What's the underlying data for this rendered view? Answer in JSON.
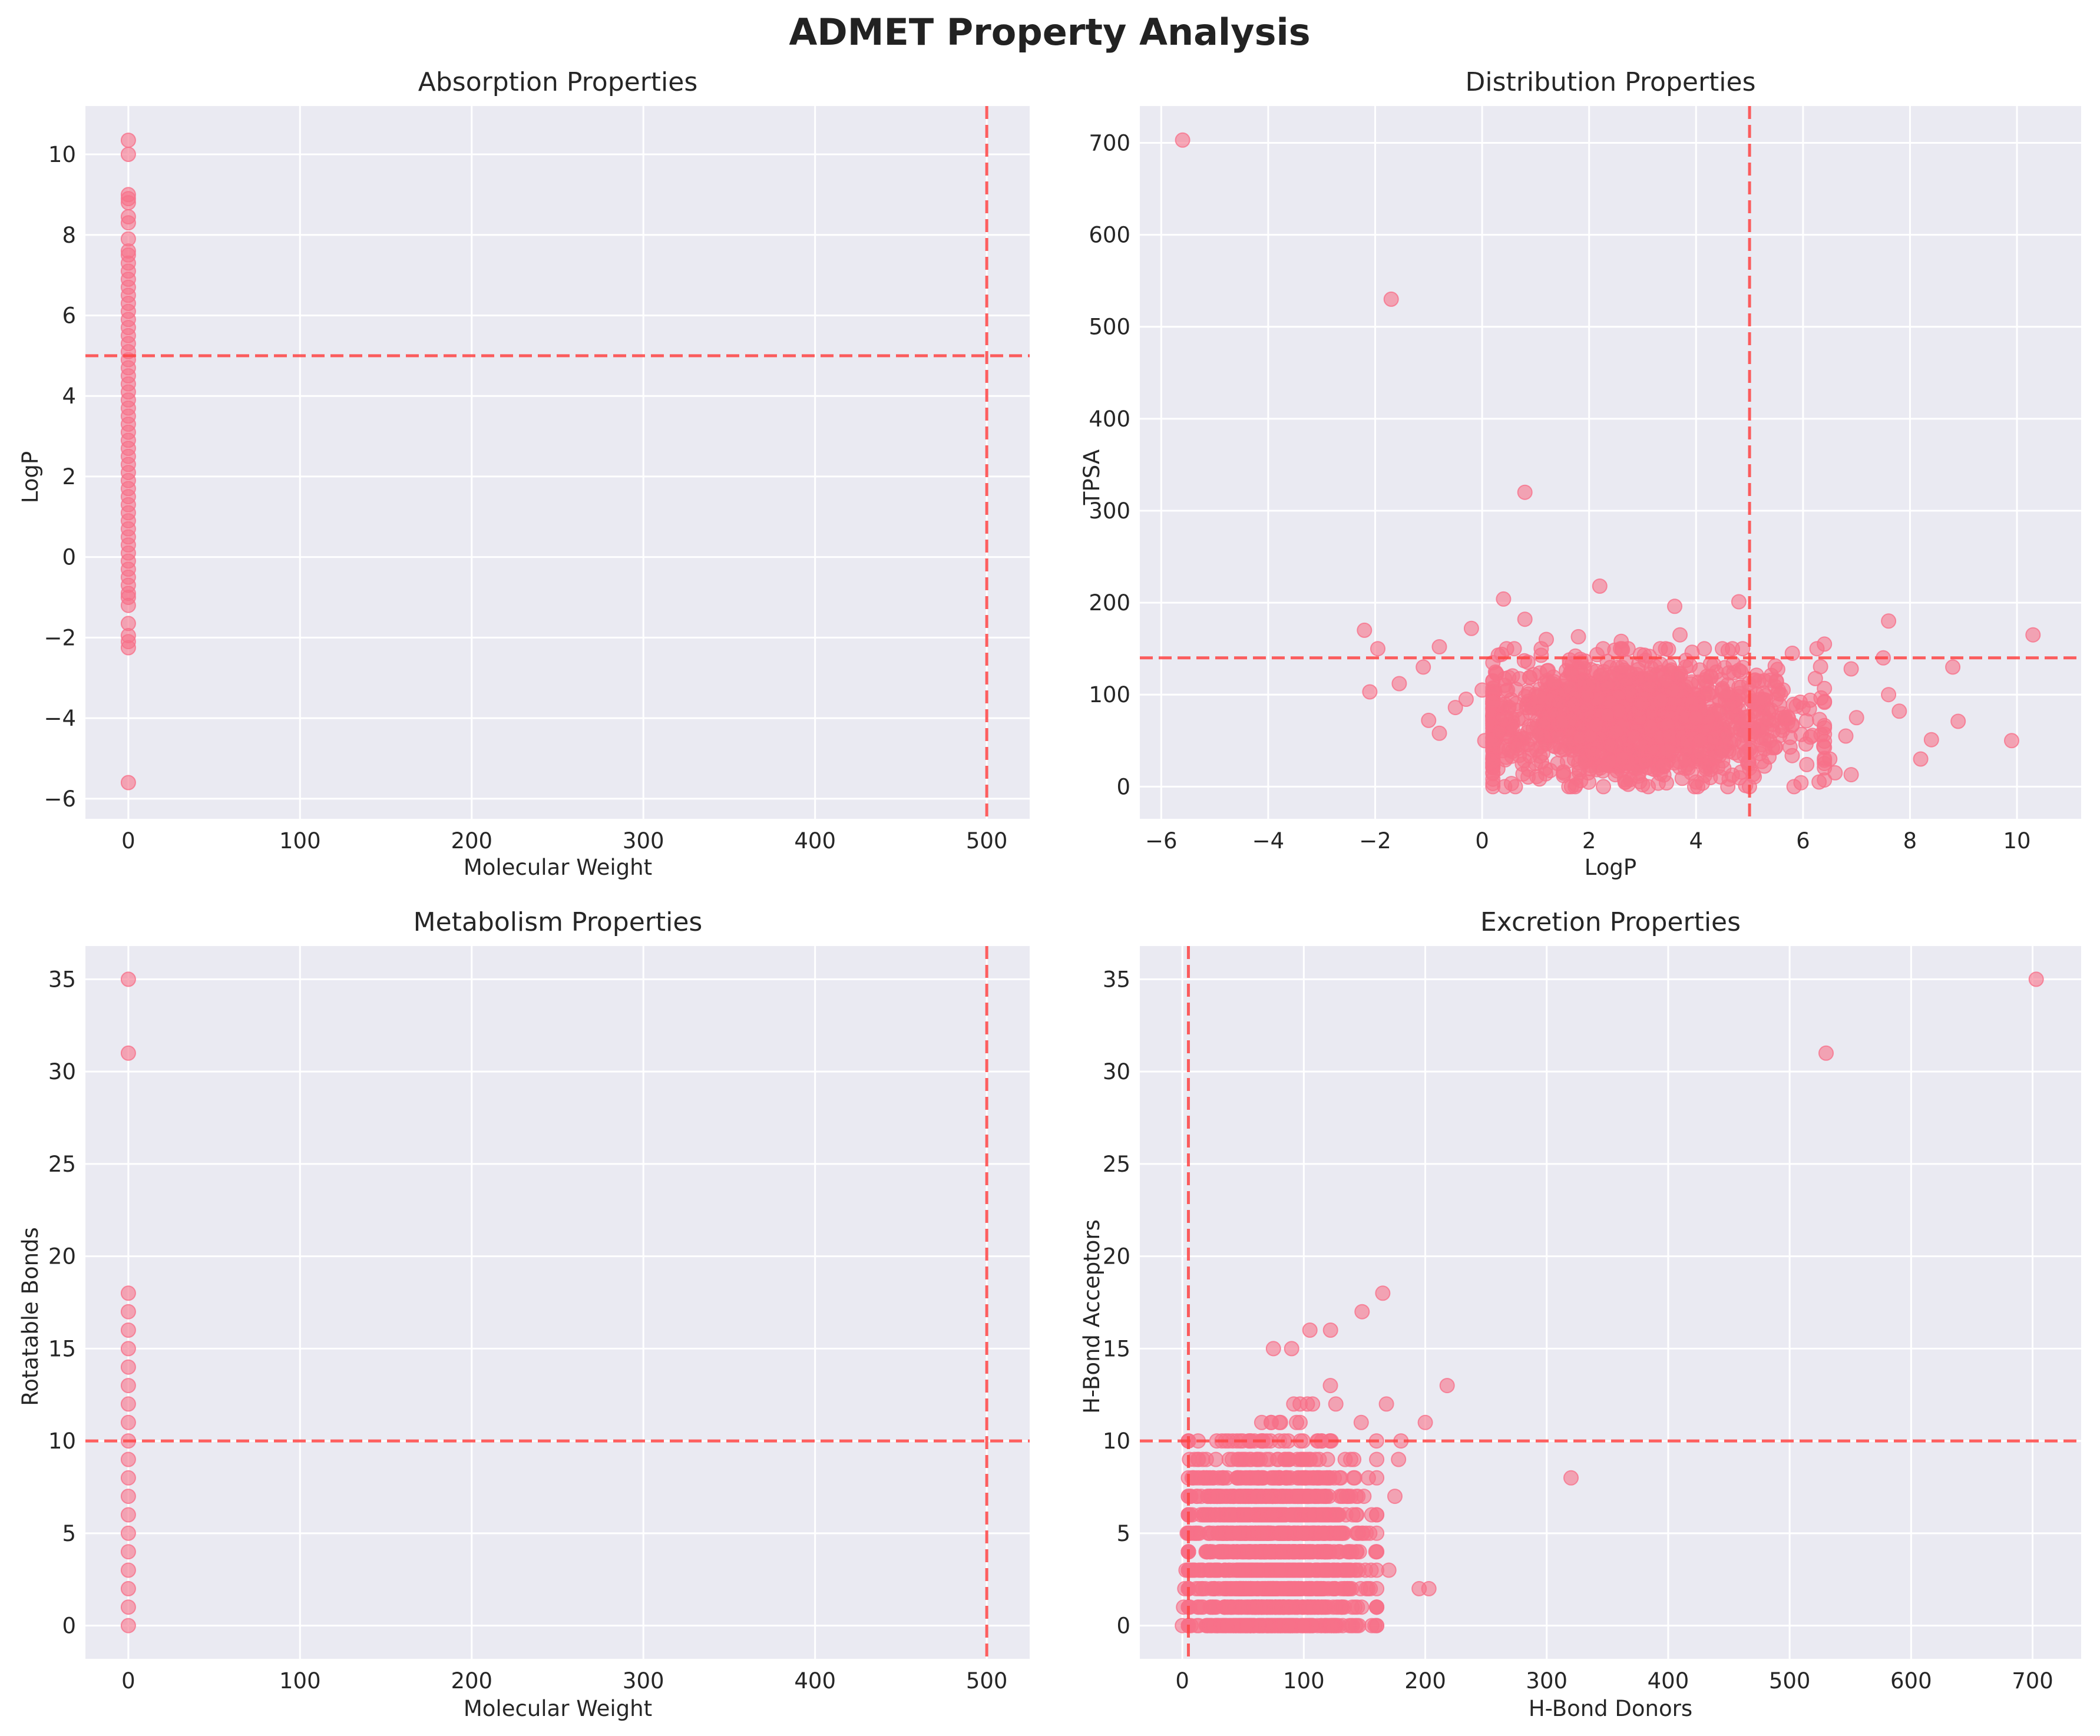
{
  "figure": {
    "title": "ADMET Property Analysis"
  },
  "colors": {
    "point": "#f77189",
    "reference_line": "#ff4444",
    "plot_background": "#eaeaf2",
    "grid": "#ffffff"
  },
  "chart_data": [
    {
      "type": "scatter",
      "title": "Absorption Properties",
      "xlabel": "Molecular Weight",
      "ylabel": "LogP",
      "xlim": [
        -25,
        525
      ],
      "ylim": [
        -6.5,
        11.2
      ],
      "xticks": [
        0,
        100,
        200,
        300,
        400,
        500
      ],
      "yticks": [
        -6,
        -4,
        -2,
        0,
        2,
        4,
        6,
        8,
        10
      ],
      "grid": true,
      "reference_lines": [
        {
          "orientation": "horizontal",
          "value": 5
        },
        {
          "orientation": "vertical",
          "value": 500
        }
      ],
      "points": [
        [
          0,
          10.35
        ],
        [
          0,
          10.0
        ],
        [
          0,
          9.0
        ],
        [
          0,
          8.9
        ],
        [
          0,
          8.8
        ],
        [
          0,
          8.45
        ],
        [
          0,
          8.3
        ],
        [
          0,
          7.9
        ],
        [
          0,
          7.6
        ],
        [
          0,
          7.5
        ],
        [
          0,
          7.3
        ],
        [
          0,
          7.1
        ],
        [
          0,
          6.9
        ],
        [
          0,
          6.7
        ],
        [
          0,
          6.5
        ],
        [
          0,
          6.3
        ],
        [
          0,
          6.1
        ],
        [
          0,
          5.9
        ],
        [
          0,
          5.7
        ],
        [
          0,
          5.5
        ],
        [
          0,
          5.3
        ],
        [
          0,
          5.1
        ],
        [
          0,
          4.9
        ],
        [
          0,
          4.7
        ],
        [
          0,
          4.5
        ],
        [
          0,
          4.3
        ],
        [
          0,
          4.1
        ],
        [
          0,
          3.9
        ],
        [
          0,
          3.7
        ],
        [
          0,
          3.5
        ],
        [
          0,
          3.3
        ],
        [
          0,
          3.1
        ],
        [
          0,
          2.9
        ],
        [
          0,
          2.7
        ],
        [
          0,
          2.5
        ],
        [
          0,
          2.3
        ],
        [
          0,
          2.1
        ],
        [
          0,
          1.9
        ],
        [
          0,
          1.7
        ],
        [
          0,
          1.5
        ],
        [
          0,
          1.3
        ],
        [
          0,
          1.1
        ],
        [
          0,
          0.9
        ],
        [
          0,
          0.7
        ],
        [
          0,
          0.5
        ],
        [
          0,
          0.3
        ],
        [
          0,
          0.1
        ],
        [
          0,
          -0.1
        ],
        [
          0,
          -0.3
        ],
        [
          0,
          -0.5
        ],
        [
          0,
          -0.7
        ],
        [
          0,
          -0.9
        ],
        [
          0,
          -1.0
        ],
        [
          0,
          -1.2
        ],
        [
          0,
          -1.65
        ],
        [
          0,
          -1.95
        ],
        [
          0,
          -2.1
        ],
        [
          0,
          -2.25
        ],
        [
          0,
          -5.6
        ]
      ]
    },
    {
      "type": "scatter",
      "title": "Distribution Properties",
      "xlabel": "LogP",
      "ylabel": "TPSA",
      "xlim": [
        -6.4,
        11.2
      ],
      "ylim": [
        -35,
        740
      ],
      "xticks": [
        -6,
        -4,
        -2,
        0,
        2,
        4,
        6,
        8,
        10
      ],
      "yticks": [
        0,
        100,
        200,
        300,
        400,
        500,
        600,
        700
      ],
      "grid": true,
      "reference_lines": [
        {
          "orientation": "horizontal",
          "value": 140
        },
        {
          "orientation": "vertical",
          "value": 5
        }
      ],
      "points": [
        [
          -5.6,
          703
        ],
        [
          -1.7,
          530
        ],
        [
          0.8,
          320
        ],
        [
          2.2,
          218
        ],
        [
          0.4,
          204
        ],
        [
          3.6,
          196
        ],
        [
          4.8,
          201
        ],
        [
          -2.2,
          170
        ],
        [
          -0.2,
          172
        ],
        [
          7.6,
          180
        ],
        [
          10.3,
          165
        ],
        [
          0.8,
          182
        ],
        [
          -1.95,
          150
        ],
        [
          -0.8,
          152
        ],
        [
          -1.1,
          130
        ],
        [
          -2.1,
          103
        ],
        [
          -1.55,
          112
        ],
        [
          -1.0,
          72
        ],
        [
          -0.8,
          58
        ],
        [
          -0.5,
          86
        ],
        [
          -0.3,
          95
        ],
        [
          0.0,
          105
        ],
        [
          0.05,
          50
        ],
        [
          0.2,
          48
        ],
        [
          8.8,
          130
        ],
        [
          8.9,
          71
        ],
        [
          9.9,
          50
        ],
        [
          8.2,
          30
        ],
        [
          8.4,
          51
        ],
        [
          7.8,
          82
        ],
        [
          7.5,
          140
        ],
        [
          7.6,
          100
        ],
        [
          7.0,
          75
        ],
        [
          6.9,
          128
        ],
        [
          6.4,
          155
        ],
        [
          6.5,
          30
        ],
        [
          6.6,
          15
        ],
        [
          6.8,
          55
        ],
        [
          6.9,
          13
        ],
        [
          6.3,
          5
        ],
        [
          5.8,
          145
        ],
        [
          5.5,
          115
        ],
        [
          5.2,
          95
        ],
        [
          5.0,
          20
        ],
        [
          4.6,
          148
        ],
        [
          3.7,
          165
        ],
        [
          2.6,
          158
        ],
        [
          1.8,
          163
        ],
        [
          1.2,
          160
        ],
        [
          0.6,
          150
        ],
        [
          3.0,
          2
        ],
        [
          4.0,
          5
        ],
        [
          1.0,
          25
        ],
        [
          0.5,
          40
        ],
        [
          2.0,
          110
        ],
        [
          3.0,
          90
        ],
        [
          4.0,
          75
        ],
        [
          1.5,
          70
        ],
        [
          2.5,
          60
        ],
        [
          3.5,
          55
        ]
      ],
      "cluster": {
        "x_center": 2.8,
        "x_spread": 1.5,
        "y_center": 72,
        "y_spread": 32
      }
    },
    {
      "type": "scatter",
      "title": "Metabolism Properties",
      "xlabel": "Molecular Weight",
      "ylabel": "Rotatable Bonds",
      "xlim": [
        -25,
        525
      ],
      "ylim": [
        -1.8,
        36.8
      ],
      "xticks": [
        0,
        100,
        200,
        300,
        400,
        500
      ],
      "yticks": [
        0,
        5,
        10,
        15,
        20,
        25,
        30,
        35
      ],
      "grid": true,
      "reference_lines": [
        {
          "orientation": "horizontal",
          "value": 10
        },
        {
          "orientation": "vertical",
          "value": 500
        }
      ],
      "points": [
        [
          0,
          0
        ],
        [
          0,
          1
        ],
        [
          0,
          2
        ],
        [
          0,
          3
        ],
        [
          0,
          4
        ],
        [
          0,
          5
        ],
        [
          0,
          6
        ],
        [
          0,
          7
        ],
        [
          0,
          8
        ],
        [
          0,
          9
        ],
        [
          0,
          10
        ],
        [
          0,
          11
        ],
        [
          0,
          12
        ],
        [
          0,
          13
        ],
        [
          0,
          14
        ],
        [
          0,
          15
        ],
        [
          0,
          16
        ],
        [
          0,
          17
        ],
        [
          0,
          18
        ],
        [
          0,
          31
        ],
        [
          0,
          35
        ]
      ]
    },
    {
      "type": "scatter",
      "title": "Excretion Properties",
      "xlabel": "H-Bond Donors",
      "ylabel": "H-Bond Acceptors",
      "xlim": [
        -35,
        740
      ],
      "ylim": [
        -1.8,
        36.8
      ],
      "xticks": [
        0,
        100,
        200,
        300,
        400,
        500,
        600,
        700
      ],
      "yticks": [
        0,
        5,
        10,
        15,
        20,
        25,
        30,
        35
      ],
      "grid": true,
      "reference_lines": [
        {
          "orientation": "horizontal",
          "value": 10
        },
        {
          "orientation": "vertical",
          "value": 5
        }
      ],
      "points": [
        [
          703,
          35
        ],
        [
          530,
          31
        ],
        [
          320,
          8
        ],
        [
          218,
          13
        ],
        [
          200,
          11
        ],
        [
          165,
          18
        ],
        [
          148,
          17
        ],
        [
          195,
          2
        ],
        [
          203,
          2
        ],
        [
          170,
          3
        ],
        [
          175,
          7
        ],
        [
          180,
          10
        ],
        [
          178,
          9
        ],
        [
          168,
          12
        ],
        [
          105,
          16
        ],
        [
          122,
          16
        ],
        [
          75,
          15
        ],
        [
          90,
          15
        ],
        [
          0,
          0
        ],
        [
          4,
          5
        ],
        [
          13,
          10
        ],
        [
          10,
          9
        ],
        [
          8,
          8
        ],
        [
          7,
          7
        ],
        [
          6,
          6
        ],
        [
          5,
          4
        ],
        [
          3,
          3
        ],
        [
          2,
          2
        ],
        [
          1,
          1
        ],
        [
          12,
          0
        ]
      ],
      "cluster": {
        "x_center": 75,
        "x_spread": 36,
        "y_center": 4,
        "y_spread": 3
      }
    }
  ]
}
